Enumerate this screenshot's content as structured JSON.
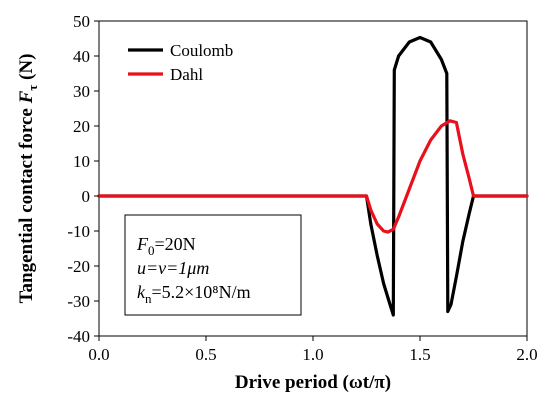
{
  "chart_data": {
    "type": "line",
    "xlabel": "Drive period (ωt/π)",
    "ylabel": "Tangential contact force F_τ (N)",
    "xlim": [
      0,
      2
    ],
    "ylim": [
      -40,
      50
    ],
    "xticks": [
      "0.0",
      "0.5",
      "1.0",
      "1.5",
      "2.0"
    ],
    "yticks": [
      "-40",
      "-30",
      "-20",
      "-10",
      "0",
      "10",
      "20",
      "30",
      "40",
      "50"
    ],
    "grid": false,
    "legend": "top-left",
    "series": [
      {
        "name": "Coulomb",
        "color": "#000000",
        "x": [
          0,
          1.25,
          1.27,
          1.3,
          1.33,
          1.36,
          1.375,
          1.38,
          1.4,
          1.45,
          1.5,
          1.55,
          1.6,
          1.625,
          1.63,
          1.645,
          1.67,
          1.7,
          1.73,
          1.75,
          2.0
        ],
        "y": [
          0,
          0,
          -8,
          -17,
          -25,
          -31,
          -34,
          36,
          40,
          44,
          45.3,
          44,
          39,
          35,
          -33,
          -31,
          -23,
          -13,
          -5,
          0,
          0
        ]
      },
      {
        "name": "Dahl",
        "color": "#e8111b",
        "x": [
          0,
          1.25,
          1.27,
          1.3,
          1.33,
          1.35,
          1.375,
          1.4,
          1.45,
          1.5,
          1.55,
          1.6,
          1.64,
          1.67,
          1.7,
          1.73,
          1.75,
          2.0
        ],
        "y": [
          0,
          0,
          -4,
          -8,
          -10,
          -10.3,
          -9.5,
          -6,
          2,
          10,
          16,
          20,
          21.5,
          21,
          12,
          5,
          0,
          0
        ]
      }
    ],
    "annotation": {
      "lines": [
        {
          "main": "F",
          "sub": "0",
          "rest": "=20N"
        },
        {
          "main": "u=v=1μm",
          "sub": "",
          "rest": ""
        },
        {
          "main": "k",
          "sub": "n",
          "rest": "=5.2×10⁸N/m"
        }
      ]
    }
  }
}
